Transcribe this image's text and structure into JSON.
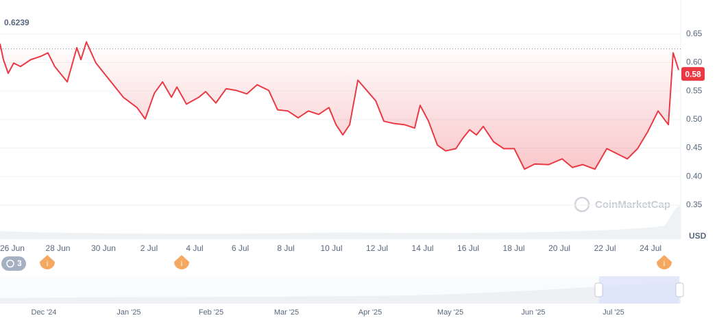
{
  "chart_data": {
    "type": "line",
    "x": [
      -0.54,
      -0.39,
      -0.18,
      0.06,
      0.36,
      0.81,
      1.26,
      1.56,
      1.86,
      2.41,
      2.83,
      3.01,
      3.25,
      3.67,
      4.27,
      4.87,
      5.47,
      5.83,
      6.23,
      6.59,
      6.98,
      7.22,
      7.64,
      8.18,
      8.48,
      8.93,
      9.38,
      9.83,
      10.29,
      10.74,
      11.25,
      11.64,
      12.09,
      12.54,
      12.99,
      13.44,
      13.89,
      14.2,
      14.5,
      14.8,
      15.16,
      15.55,
      15.94,
      16.3,
      16.75,
      17.2,
      17.65,
      17.89,
      18.26,
      18.65,
      19.01,
      19.46,
      19.76,
      20.06,
      20.36,
      20.66,
      21.11,
      21.56,
      22.02,
      22.47,
      22.92,
      23.53,
      24.12,
      24.57,
      25.02,
      25.56,
      26.08,
      26.53,
      26.98,
      27.43,
      27.88,
      28.33,
      28.78,
      28.99,
      29.23
    ],
    "values": [
      0.633,
      0.605,
      0.581,
      0.599,
      0.593,
      0.605,
      0.611,
      0.617,
      0.593,
      0.566,
      0.626,
      0.605,
      0.636,
      0.599,
      0.569,
      0.539,
      0.521,
      0.501,
      0.546,
      0.566,
      0.539,
      0.557,
      0.527,
      0.539,
      0.549,
      0.529,
      0.554,
      0.551,
      0.545,
      0.561,
      0.551,
      0.517,
      0.515,
      0.503,
      0.515,
      0.509,
      0.521,
      0.491,
      0.473,
      0.491,
      0.569,
      0.551,
      0.533,
      0.497,
      0.493,
      0.491,
      0.485,
      0.525,
      0.497,
      0.455,
      0.445,
      0.449,
      0.467,
      0.482,
      0.473,
      0.488,
      0.461,
      0.449,
      0.449,
      0.413,
      0.422,
      0.421,
      0.431,
      0.416,
      0.421,
      0.413,
      0.449,
      0.44,
      0.431,
      0.449,
      0.479,
      0.515,
      0.491,
      0.617,
      0.587
    ],
    "color": "#ea3943",
    "xlim": [
      -0.54,
      29.32
    ],
    "xticks": [
      {
        "value": 0,
        "label": "26 Jun"
      },
      {
        "value": 2,
        "label": "28 Jun"
      },
      {
        "value": 4,
        "label": "30 Jun"
      },
      {
        "value": 6,
        "label": "2 Jul"
      },
      {
        "value": 8,
        "label": "4 Jul"
      },
      {
        "value": 10,
        "label": "6 Jul"
      },
      {
        "value": 12,
        "label": "8 Jul"
      },
      {
        "value": 14,
        "label": "10 Jul"
      },
      {
        "value": 16,
        "label": "12 Jul"
      },
      {
        "value": 18,
        "label": "14 Jul"
      },
      {
        "value": 20,
        "label": "16 Jul"
      },
      {
        "value": 22,
        "label": "18 Jul"
      },
      {
        "value": 24,
        "label": "20 Jul"
      },
      {
        "value": 26,
        "label": "22 Jul"
      },
      {
        "value": 28,
        "label": "24 Jul"
      }
    ],
    "ylim": [
      0.29,
      0.7
    ],
    "yticks": [
      0.35,
      {
        "value": 0.4,
        "label": "0.40"
      },
      0.45,
      {
        "value": 0.5,
        "label": "0.50"
      },
      0.55,
      {
        "value": 0.6,
        "label": "0.60"
      },
      0.65
    ],
    "y_label": "USD",
    "grid": true,
    "reference_value": 0.6239,
    "current_price": 0.58,
    "watermark": "CoinMarketCap",
    "events_count": 3,
    "event_marker": "i",
    "navigator_labels": [
      "Dec '24",
      "Jan '25",
      "Feb '25",
      "Mar '25",
      "Apr '25",
      "May '25",
      "Jun '25",
      "Jul '25"
    ]
  }
}
